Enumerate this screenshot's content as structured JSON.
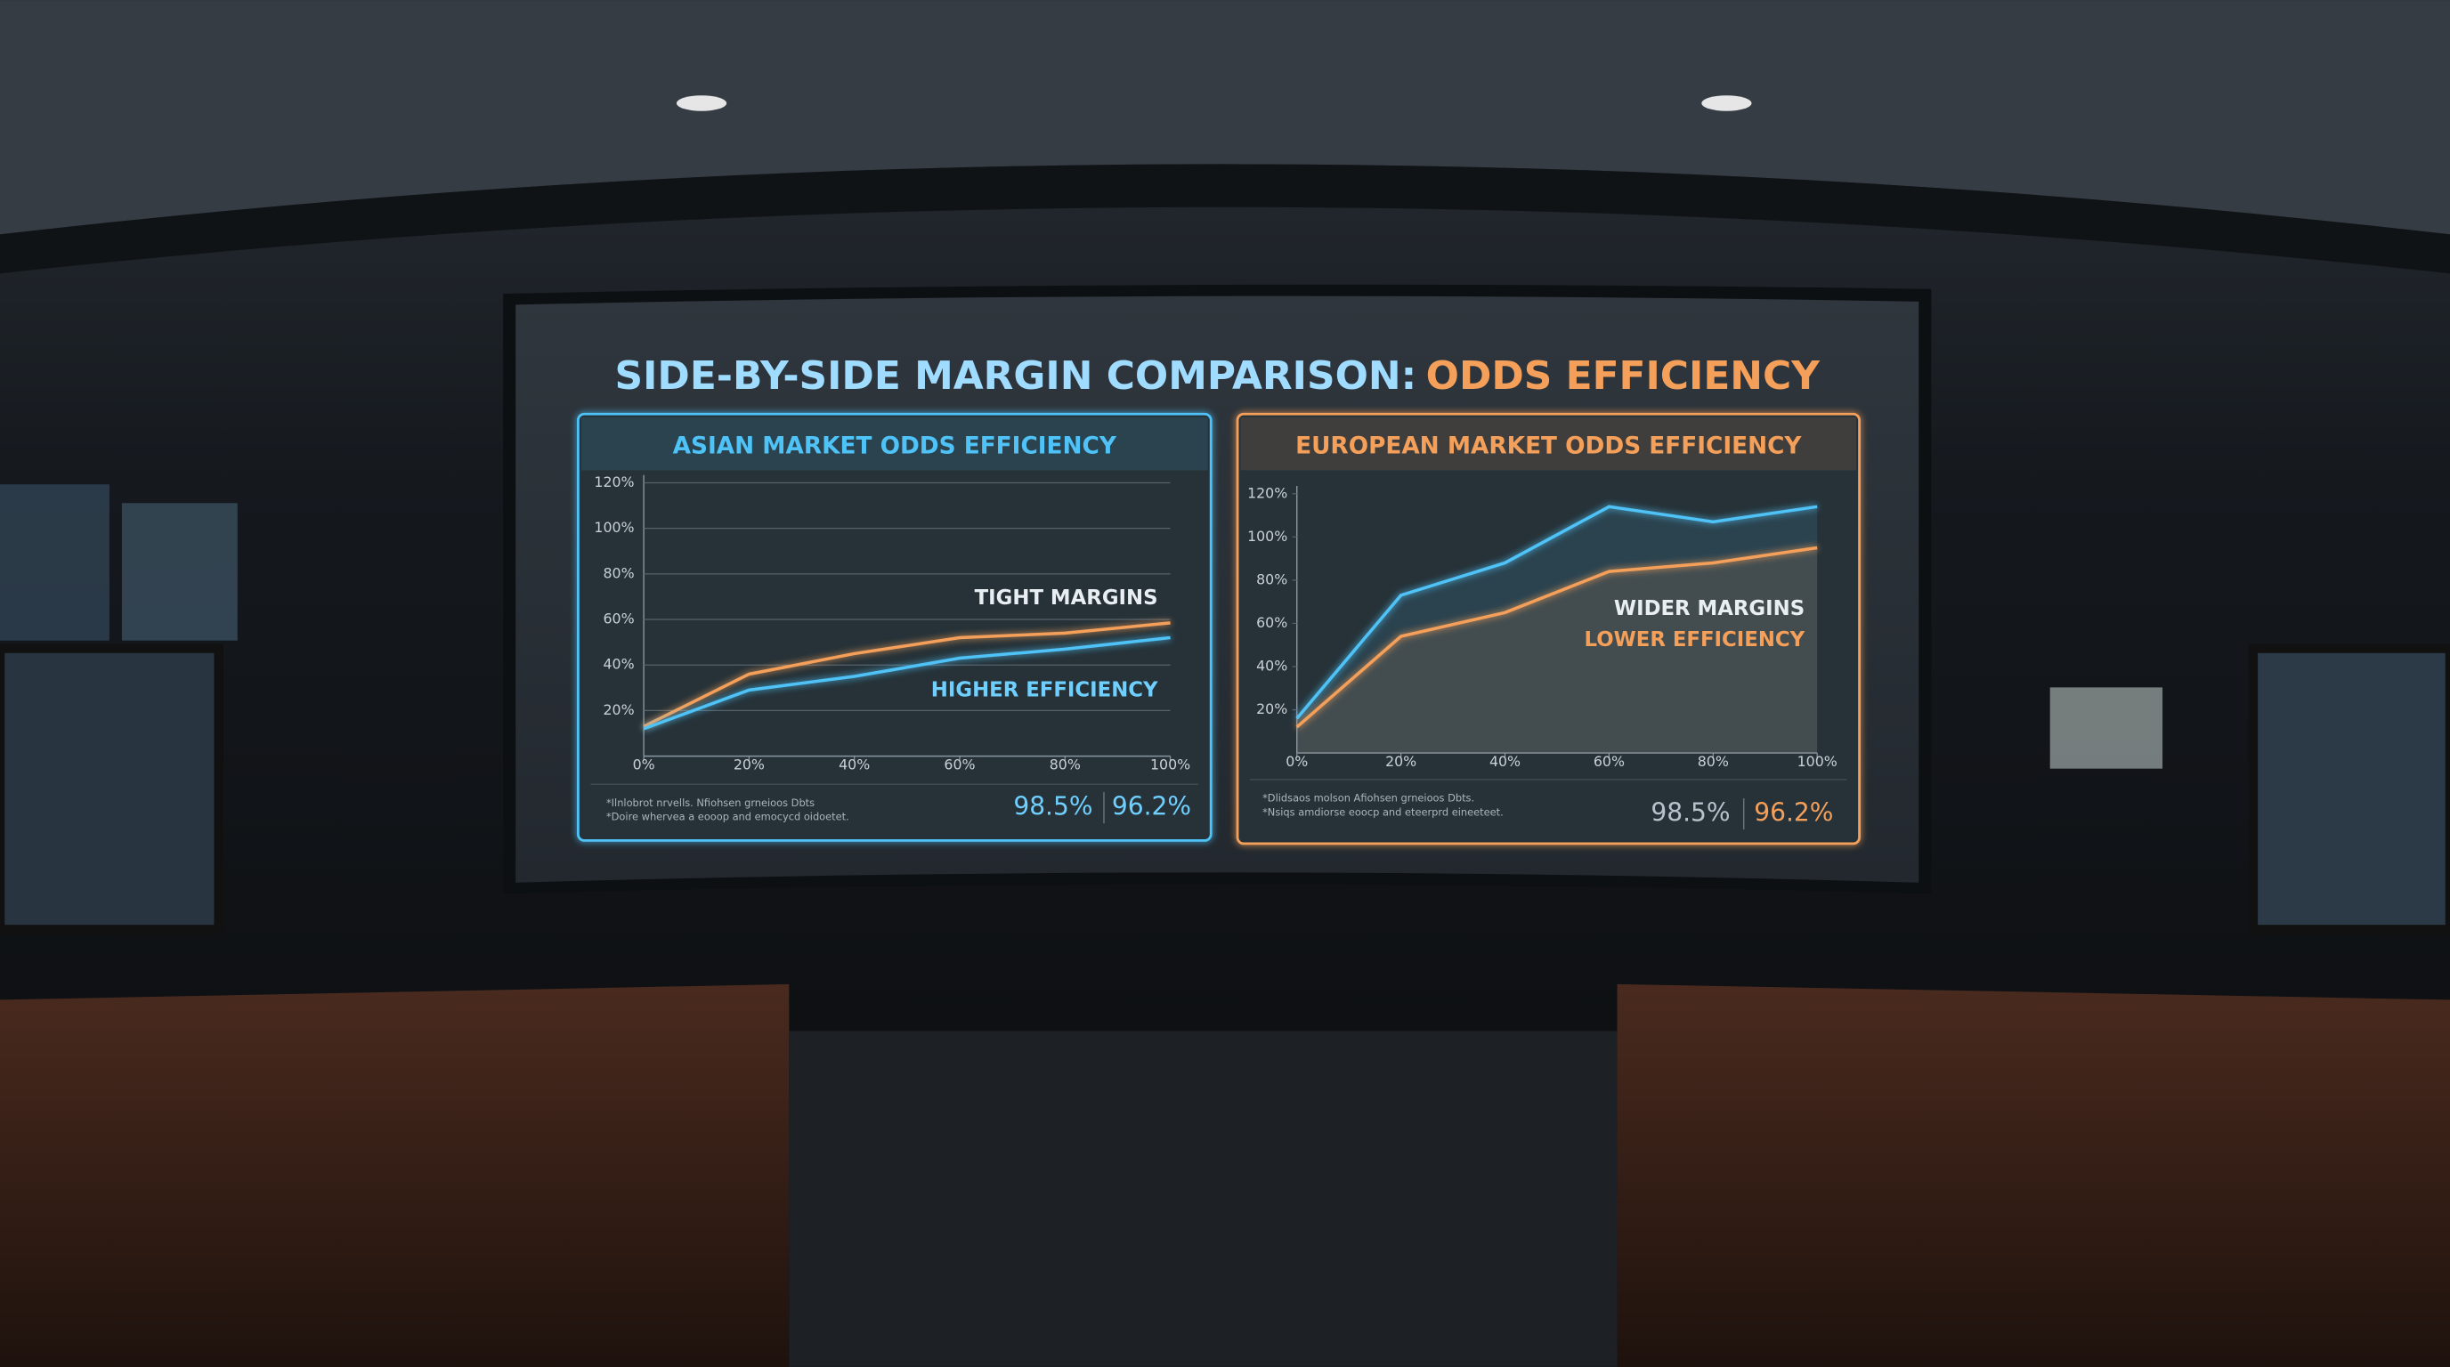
{
  "screen": {
    "title_main": "SIDE-BY-SIDE MARGIN COMPARISON:",
    "title_accent": "ODDS EFFICIENCY"
  },
  "chart_data": [
    {
      "type": "line",
      "title": "ASIAN MARKET ODDS EFFICIENCY",
      "x": [
        0,
        20,
        40,
        60,
        80,
        100
      ],
      "xlim": [
        0,
        100
      ],
      "xticks": [
        {
          "value": 0,
          "label": "0%"
        },
        {
          "value": 20,
          "label": "20%"
        },
        {
          "value": 40,
          "label": "40%"
        },
        {
          "value": 60,
          "label": "60%"
        },
        {
          "value": 80,
          "label": "80%"
        },
        {
          "value": 100,
          "label": "100%"
        }
      ],
      "ylim": [
        0,
        120
      ],
      "yticks": [
        {
          "value": 20,
          "label": "20%"
        },
        {
          "value": 40,
          "label": "40%"
        },
        {
          "value": 60,
          "label": "60%"
        },
        {
          "value": 80,
          "label": "80%"
        },
        {
          "value": 100,
          "label": "100%"
        },
        {
          "value": 120,
          "label": "120%"
        }
      ],
      "grid": true,
      "frame_color": "#4fc3f7",
      "series": [
        {
          "color": "#f5a05a",
          "values": [
            13,
            36,
            45,
            52,
            54,
            58.5
          ]
        },
        {
          "color": "#4fc3f7",
          "values": [
            12,
            29,
            35,
            43,
            47,
            52
          ]
        }
      ],
      "annotations": [
        {
          "text": "TIGHT MARGINS",
          "color": "#e8eef2"
        },
        {
          "text": "HIGHER EFFICIENCY",
          "color": "#6fd0ff"
        }
      ],
      "footnotes": [
        "*Ilnlobrot nrvells. Nfiohsen grneioos Dbts",
        "*Doire whervea a eooop and emocycd oidoetet."
      ],
      "stats": [
        {
          "text": "98.5%",
          "color": "#6fd0ff"
        },
        {
          "text": "96.2%",
          "color": "#6fd0ff"
        }
      ]
    },
    {
      "type": "line",
      "title": "EUROPEAN MARKET ODDS EFFICIENCY",
      "x": [
        0,
        20,
        40,
        60,
        80,
        100
      ],
      "xlim": [
        0,
        100
      ],
      "xticks": [
        {
          "value": 0,
          "label": "0%"
        },
        {
          "value": 20,
          "label": "20%"
        },
        {
          "value": 40,
          "label": "40%"
        },
        {
          "value": 60,
          "label": "60%"
        },
        {
          "value": 80,
          "label": "80%"
        },
        {
          "value": 100,
          "label": "100%"
        }
      ],
      "ylim": [
        0,
        120
      ],
      "yticks": [
        {
          "value": 20,
          "label": "20%"
        },
        {
          "value": 40,
          "label": "40%"
        },
        {
          "value": 60,
          "label": "60%"
        },
        {
          "value": 80,
          "label": "80%"
        },
        {
          "value": 100,
          "label": "100%"
        },
        {
          "value": 120,
          "label": "120%"
        }
      ],
      "grid": false,
      "frame_color": "#f5a05a",
      "series": [
        {
          "color": "#4fc3f7",
          "values": [
            16,
            73,
            88,
            114,
            107,
            114
          ]
        },
        {
          "color": "#f5a05a",
          "values": [
            12,
            54,
            65,
            84,
            88,
            95
          ]
        }
      ],
      "annotations": [
        {
          "text": "WIDER MARGINS",
          "color": "#e8eef2"
        },
        {
          "text": "LOWER EFFICIENCY",
          "color": "#f5a05a"
        }
      ],
      "footnotes": [
        "*Dlidsaos molson Afiohsen grneioos Dbts.",
        "*Nsiqs amdiorse eoocp and eteerprd eineeteet."
      ],
      "stats": [
        {
          "text": "98.5%",
          "color": "#b8c2cc"
        },
        {
          "text": "96.2%",
          "color": "#f5a05a"
        }
      ]
    }
  ]
}
